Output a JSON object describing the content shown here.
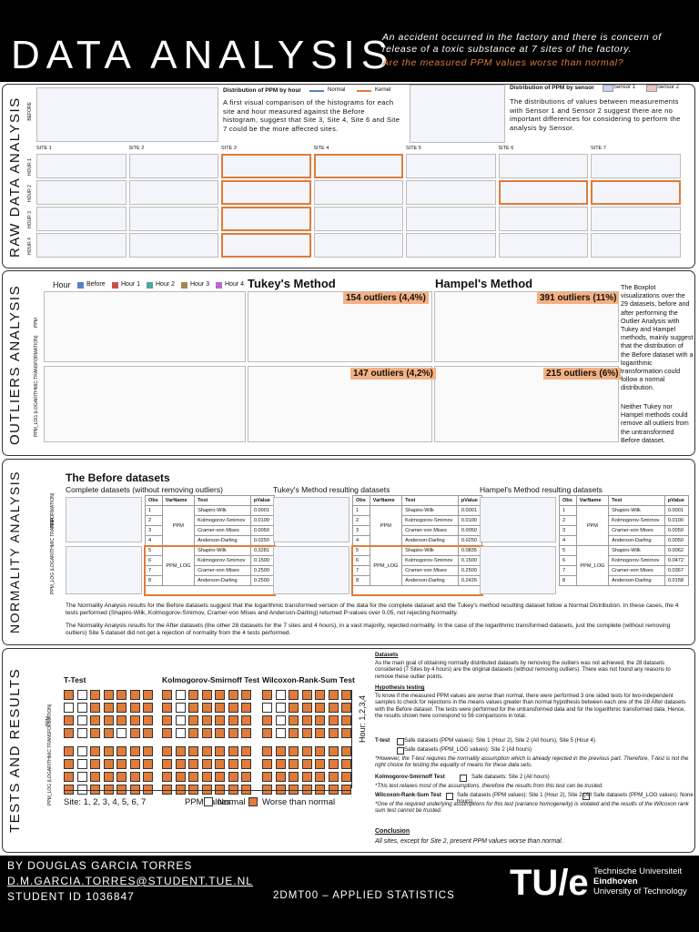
{
  "header": {
    "title": "DATA ANALYSIS",
    "intro": "An accident occurred in the factory and there is concern of release of a toxic substance at 7 sites of the factory.",
    "question": "Are the measured PPM values worse than normal?"
  },
  "raw": {
    "label": "RAW DATA ANALYSIS",
    "before_label": "BEFORE",
    "hist_title": "Distribution of PPM by hour",
    "legend": [
      "Normal",
      "Kernel"
    ],
    "hist_text": "A first visual comparison of the histograms for each site and hour measured against the Before histogram, suggest that Site 3, Site 4, Site 6 and Site 7 could be the more affected sites.",
    "sensor_title": "Distribution of PPM by sensor",
    "sensor_legend": [
      "Sensor 1",
      "Sensor 2"
    ],
    "sensor_text": "The distributions of values between measurements with Sensor 1 and Sensor 2 suggest there are no important differences for considering to perform the analysis by Sensor.",
    "sites": [
      "SITE 1",
      "SITE 2",
      "SITE 3",
      "SITE 4",
      "SITE 5",
      "SITE 6",
      "SITE 7"
    ],
    "hours": [
      "HOUR 1",
      "HOUR 2",
      "HOUR 3",
      "HOUR 4"
    ],
    "highlight": [
      [
        false,
        false,
        true,
        true,
        false,
        false,
        false
      ],
      [
        false,
        false,
        true,
        false,
        false,
        true,
        true
      ],
      [
        false,
        false,
        true,
        false,
        false,
        false,
        false
      ],
      [
        false,
        false,
        true,
        false,
        false,
        false,
        false
      ]
    ]
  },
  "outliers": {
    "label": "OUTLIERS ANALYSIS",
    "legend_title": "Hour",
    "legend": [
      {
        "name": "Before",
        "color": "#5b7fc4"
      },
      {
        "name": "Hour 1",
        "color": "#c9504a"
      },
      {
        "name": "Hour 2",
        "color": "#4aa8a0"
      },
      {
        "name": "Hour 3",
        "color": "#a7874a"
      },
      {
        "name": "Hour 4",
        "color": "#b36ad0"
      }
    ],
    "tukey_title": "Tukey's Method",
    "hampel_title": "Hampel's Method",
    "tukey_ppm": "154 outliers (4,4%)",
    "hampel_ppm": "391 outliers (11%)",
    "tukey_log": "147 outliers (4,2%)",
    "hampel_log": "215 outliers (6%)",
    "y_ppm": "PPM",
    "y_log": "PPM_LOG (LOGARITHMIC TRANSFORMATION)",
    "text1": "The Boxplot visualizations over the 29 datasets, before and after performing the Outlier Analysis with Tukey and Hampel methods, mainly suggest that the distribution of the Before dataset with a logarithmic transformation could follow a normal distribution.",
    "text2": "Neither Tukey nor Hampel methods could remove all outliers from the untransformed Before dataset."
  },
  "normality": {
    "label": "NORMALITY ANALYSIS",
    "heading": "The Before datasets",
    "y_ppm": "PPM",
    "y_log": "PPM_LOG (LOGARITHMIC TRANSFORMATION)",
    "columns": [
      "Obs",
      "VarName",
      "Test",
      "pValue"
    ],
    "var_ppm": "PPM",
    "var_log": "PPM_LOG",
    "panels": [
      {
        "title": "Complete datasets (without removing outliers)",
        "highlight_log": true,
        "rows": [
          [
            "1",
            "Shapiro-Wilk",
            "0.0001"
          ],
          [
            "2",
            "Kolmogorov-Smirnov",
            "0.0100"
          ],
          [
            "3",
            "Cramer-von Mises",
            "0.0050"
          ],
          [
            "4",
            "Anderson-Darling",
            "0.0250"
          ],
          [
            "5",
            "Shapiro-Wilk",
            "0.3281"
          ],
          [
            "6",
            "Kolmogorov-Smirnov",
            "0.1500"
          ],
          [
            "7",
            "Cramer-von Mises",
            "0.2500"
          ],
          [
            "8",
            "Anderson-Darling",
            "0.2500"
          ]
        ]
      },
      {
        "title": "Tukey's Method resulting datasets",
        "highlight_log": true,
        "rows": [
          [
            "1",
            "Shapiro-Wilk",
            "0.0001"
          ],
          [
            "2",
            "Kolmogorov-Smirnov",
            "0.0100"
          ],
          [
            "3",
            "Cramer-von Mises",
            "0.0050"
          ],
          [
            "4",
            "Anderson-Darling",
            "0.0250"
          ],
          [
            "5",
            "Shapiro-Wilk",
            "0.0835"
          ],
          [
            "6",
            "Kolmogorov-Smirnov",
            "0.1500"
          ],
          [
            "7",
            "Cramer-von Mises",
            "0.2500"
          ],
          [
            "8",
            "Anderson-Darling",
            "0.2426"
          ]
        ]
      },
      {
        "title": "Hampel's Method resulting datasets",
        "highlight_log": false,
        "rows": [
          [
            "1",
            "Shapiro-Wilk",
            "0.0001"
          ],
          [
            "2",
            "Kolmogorov-Smirnov",
            "0.0100"
          ],
          [
            "3",
            "Cramer-von Mises",
            "0.0050"
          ],
          [
            "4",
            "Anderson-Darling",
            "0.0050"
          ],
          [
            "5",
            "Shapiro-Wilk",
            "0.0062"
          ],
          [
            "6",
            "Kolmogorov-Smirnov",
            "0.0472"
          ],
          [
            "7",
            "Cramer-von Mises",
            "0.0367"
          ],
          [
            "8",
            "Anderson-Darling",
            "0.0158"
          ]
        ]
      }
    ],
    "text1": "The Normality Analysis results for the Before datasets suggest that the logarithmic transformed version of the data for the complete dataset and the Tukey's method resulting dataset follow a Normal Distribution. In these cases, the 4 tests performed (Shapiro-Wilk, Kolmogorov-Smirnov, Cramer-von Mises and Anderson-Darling) returned P-values over 0.05, not rejecting Normality.",
    "text2": "The Normality Analysis results for the After datasets (the other 28 datasets for the 7 sites and 4 hours), in a vast majority, rejected normality. In the case of the logarithmic transformed datasets, just the complete (without removing outliers) Site 5 dataset did not get a rejection of normality from the 4 tests performed."
  },
  "tests": {
    "label": "TESTS AND RESULTS",
    "row_ppm": "PPM",
    "row_log": "PPM_LOG (LOGARITHMIC TRANSFORMATION)",
    "hours_label": "Hour: 1,2,3,4",
    "sites_label": "Site: 1, 2, 3, 4, 5, 6, 7",
    "ppm_values": "PPM values:",
    "normal": "Normal",
    "worse": "Worse than normal",
    "grids": [
      {
        "title": "T-Test",
        "cells": [
          [
            1,
            0,
            1,
            1,
            1,
            1,
            1
          ],
          [
            0,
            0,
            1,
            1,
            1,
            1,
            1
          ],
          [
            1,
            0,
            1,
            1,
            1,
            1,
            1
          ],
          [
            1,
            0,
            1,
            1,
            0,
            1,
            1
          ],
          [
            1,
            0,
            1,
            1,
            1,
            1,
            1
          ],
          [
            1,
            0,
            1,
            1,
            1,
            1,
            1
          ],
          [
            1,
            0,
            1,
            1,
            1,
            1,
            1
          ],
          [
            1,
            0,
            1,
            1,
            1,
            1,
            1
          ]
        ]
      },
      {
        "title": "Kolmogorov-Smirnoff Test",
        "cells": [
          [
            1,
            0,
            1,
            1,
            1,
            1,
            1
          ],
          [
            1,
            0,
            1,
            1,
            1,
            1,
            1
          ],
          [
            1,
            0,
            1,
            1,
            1,
            1,
            1
          ],
          [
            1,
            0,
            1,
            1,
            1,
            1,
            1
          ],
          [
            1,
            1,
            1,
            1,
            1,
            1,
            1
          ],
          [
            1,
            1,
            1,
            1,
            1,
            1,
            1
          ],
          [
            1,
            1,
            1,
            1,
            1,
            1,
            1
          ],
          [
            1,
            1,
            1,
            1,
            1,
            1,
            1
          ]
        ]
      },
      {
        "title": "Wilcoxon-Rank-Sum Test",
        "cells": [
          [
            1,
            0,
            1,
            1,
            1,
            1,
            1
          ],
          [
            0,
            0,
            1,
            1,
            1,
            1,
            1
          ],
          [
            1,
            0,
            1,
            1,
            1,
            1,
            1
          ],
          [
            1,
            0,
            1,
            1,
            1,
            1,
            1
          ],
          [
            1,
            1,
            1,
            1,
            1,
            1,
            1
          ],
          [
            1,
            1,
            1,
            1,
            1,
            1,
            1
          ],
          [
            1,
            1,
            1,
            1,
            1,
            1,
            1
          ],
          [
            1,
            1,
            1,
            1,
            1,
            1,
            1
          ]
        ]
      }
    ],
    "datasets_h": "Datasets",
    "datasets": "As the main goal of obtaining normally distributed datasets by removing the outliers was not achieved, the 28 datasets considered (7 Sites by 4 hours) are the original datasets (without removing outliers). There was not found any reasons to remove these outlier points.",
    "hyp_h": "Hypothesis testing",
    "hyp": "To know if the measured PPM values are worse than normal, there were performed 3 one sided tests for two-independent samples to check for rejections in the means values greater than normal hypothesis between each one of the 28 After datasets with the Before dataset. The tests were performed for the untransformed data and for the logarithmic transformed data. Hence, the results shown here correspond to 56 comparisons in total.",
    "ttest_label": "T-test",
    "ttest_safe1": "Safe datasets (PPM values): Site 1 (Hour 2), Site 2 (All hours), Site 5 (Hour 4)",
    "ttest_safe2": "Safe datasets (PPM_LOG values): Site 2 (All hours)",
    "ttest_note": "*However, the T-test requires the normality assumption which is already rejected in the previous part. Therefore, T-test is not the right choice for testing the equality of means for these data sets.",
    "ks_label": "Kolmogorov-Smirnoff Test",
    "ks_safe": "Safe datasets: Site 2 (All hours)",
    "ks_note": "*This test relaxes most of the assumptions, therefore the results from this test can be trusted.",
    "wx_label": "Wilcoxon-Rank-Sum Test",
    "wx_safe1": "Safe datasets (PPM values): Site 1 (Hour 2), Site 2 (All hours)",
    "wx_safe2": "Safe datasets (PPM_LOG values): None",
    "wx_note": "*One of the required underlying assumptions for this test (variance homogeneity) is violated and the results of the Wilcoxon rank sum test cannot be trusted.",
    "concl_h": "Conclusion",
    "concl": "All sites, except for Site 2, present PPM values worse than normal."
  },
  "footer": {
    "author": "BY DOUGLAS GARCIA TORRES",
    "email": "D.M.GARCIA.TORRES@STUDENT.TUE.NL",
    "student": "STUDENT ID 1036847",
    "course": "2DMT00 – APPLIED STATISTICS",
    "logo": "TU/e",
    "uni": [
      "Technische Universiteit",
      "Eindhoven",
      "University of Technology"
    ]
  }
}
